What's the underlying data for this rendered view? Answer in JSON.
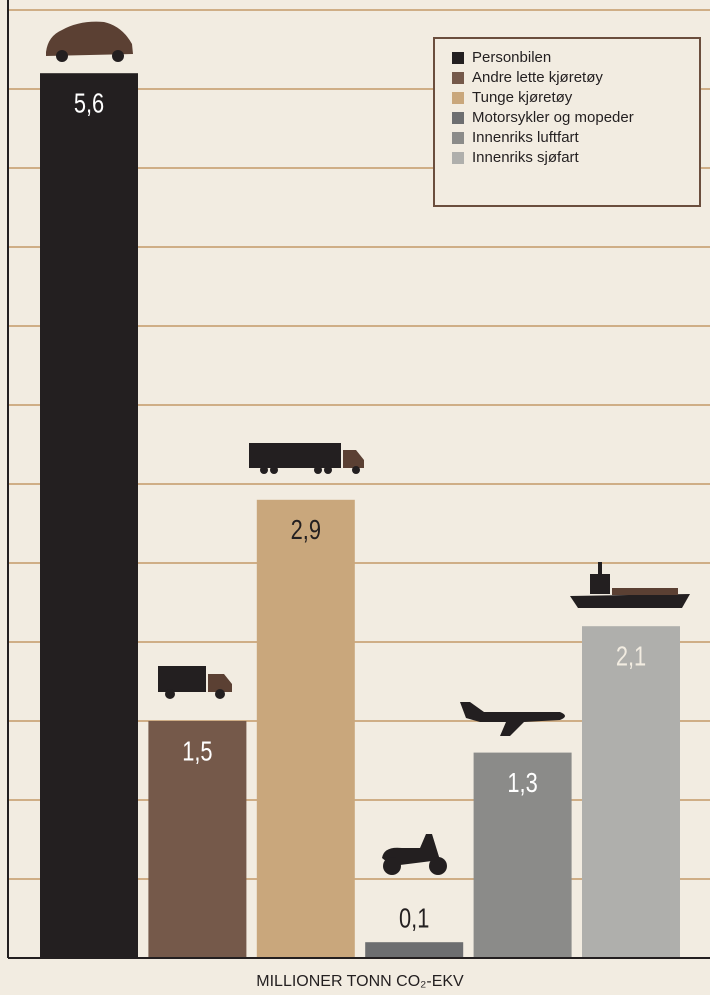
{
  "chart_data": {
    "type": "bar",
    "categories": [
      "Personbilen",
      "Andre lette kjøretøy",
      "Tunge kjøretøy",
      "Motorsykler og mopeder",
      "Innenriks luftfart",
      "Innenriks sjøfart"
    ],
    "values": [
      5.6,
      1.5,
      2.9,
      0.1,
      1.3,
      2.1
    ],
    "value_labels": [
      "5,6",
      "1,5",
      "2,9",
      "0,1",
      "1,3",
      "2,1"
    ],
    "colors": [
      "#231f20",
      "#75594a",
      "#c9a77c",
      "#6d6e70",
      "#8b8b89",
      "#afafac"
    ],
    "value_label_colors": [
      "#ffffff",
      "#ffffff",
      "#231f20",
      "#231f20",
      "#ffffff",
      "#f2ece1"
    ],
    "ylim": [
      0,
      6
    ],
    "yticks": [
      0,
      0.5,
      1,
      1.5,
      2,
      2.5,
      3,
      3.5,
      4,
      4.5,
      5,
      5.5,
      6
    ],
    "grid": true,
    "xlabel": "MILLIONER TONN CO₂-EKV",
    "legend": "top-right"
  }
}
